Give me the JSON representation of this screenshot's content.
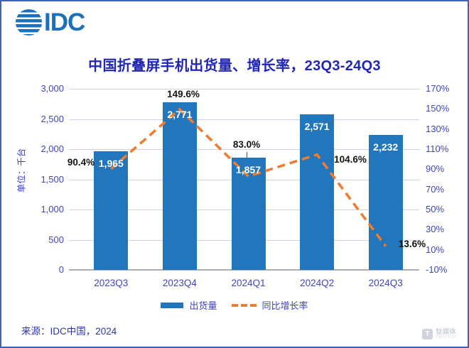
{
  "logo": {
    "text": "IDC"
  },
  "title": "中国折叠屏手机出货量、增长率，23Q3-24Q3",
  "chart_data": {
    "type": "combo-bar-line",
    "title": "中国折叠屏手机出货量、增长率，23Q3-24Q3",
    "categories": [
      "2023Q3",
      "2023Q4",
      "2024Q1",
      "2024Q2",
      "2024Q3"
    ],
    "series": [
      {
        "name": "出货量",
        "type": "bar",
        "unit": "千台",
        "values": [
          1965,
          2771,
          1857,
          2571,
          2232
        ],
        "labels": [
          "1,965",
          "2,771",
          "1,857",
          "2,571",
          "2,232"
        ]
      },
      {
        "name": "同比增长率",
        "type": "line",
        "unit": "%",
        "values": [
          90.4,
          149.6,
          83.0,
          104.6,
          13.6
        ],
        "labels": [
          "90.4%",
          "149.6%",
          "83.0%",
          "104.6%",
          "13.6%"
        ]
      }
    ],
    "left_axis": {
      "title": "单位：千台",
      "min": 0,
      "max": 3000,
      "ticks": [
        "3,000",
        "2,500",
        "2,000",
        "1,500",
        "1,000",
        "500",
        "0"
      ]
    },
    "right_axis": {
      "min": -10,
      "max": 170,
      "ticks": [
        "170%",
        "150%",
        "130%",
        "110%",
        "90%",
        "70%",
        "50%",
        "30%",
        "10%",
        "-10%"
      ]
    },
    "grid": true,
    "legend_position": "bottom"
  },
  "legend": {
    "bar_label": "出货量",
    "line_label": "同比增长率"
  },
  "source": "来源：IDC中国，2024",
  "watermark": {
    "icon": "T",
    "name": "钛媒体",
    "subname": "TMTPOST"
  },
  "colors": {
    "bar": "#2176BC",
    "line": "#ED7D31",
    "title": "#2126B5",
    "axis_text": "#4145B8",
    "grid": "#CDD2EE",
    "axis_line": "#A9ADB5",
    "value_label": "#FFFFFF",
    "growth_label": "#141414",
    "border": "#3E63B5",
    "logo": "#1D71B8",
    "source_text": "#2F36A5",
    "watermark": "#C7CCD6"
  }
}
